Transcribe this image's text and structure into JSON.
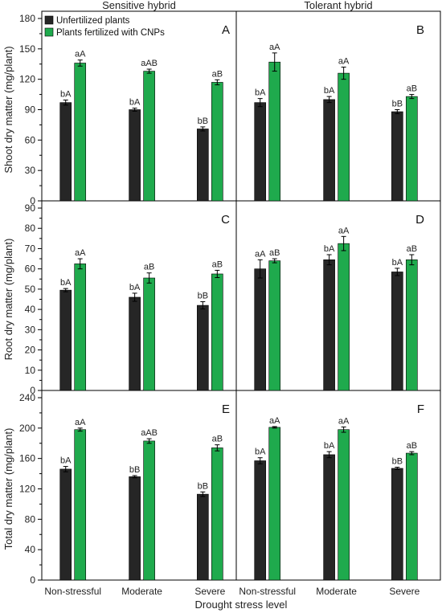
{
  "chart_data": {
    "type": "bar",
    "column_titles": [
      "Sensitive hybrid",
      "Tolerant hybrid"
    ],
    "categories": [
      "Non-stressful",
      "Moderate",
      "Severe"
    ],
    "xlabel": "Drought stress level",
    "legend": {
      "placement": "top-left",
      "entries": [
        "Unfertilized plants",
        "Plants fertilized with CNPs"
      ]
    },
    "colors": {
      "unfertilized": "#262626",
      "fertilized": "#1faa4d"
    },
    "rows": [
      {
        "ylabel": "Shoot dry matter (mg/plant)",
        "ylim": [
          0,
          180
        ],
        "ticks": [
          "0",
          "30",
          "60",
          "90",
          "120",
          "150",
          "180"
        ]
      },
      {
        "ylabel": "Root dry matter (mg/plant)",
        "ylim": [
          0,
          90
        ],
        "ticks": [
          "0",
          "10",
          "20",
          "30",
          "40",
          "50",
          "60",
          "70",
          "80",
          "90"
        ]
      },
      {
        "ylabel": "Total dry matter (mg/plant)",
        "ylim": [
          0,
          240
        ],
        "ticks": [
          "0",
          "40",
          "80",
          "120",
          "160",
          "200",
          "240"
        ]
      }
    ],
    "panels": [
      {
        "letter": "A",
        "row": 0,
        "col": 0,
        "series": [
          {
            "name": "Unfertilized plants",
            "values": [
              97,
              90,
              71
            ],
            "errors": [
              2.5,
              1.5,
              2
            ],
            "labels": [
              "bA",
              "bA",
              "bB"
            ]
          },
          {
            "name": "Plants fertilized with CNPs",
            "values": [
              136,
              128,
              117
            ],
            "errors": [
              3,
              2,
              2.5
            ],
            "labels": [
              "aA",
              "aAB",
              "aB"
            ]
          }
        ]
      },
      {
        "letter": "B",
        "row": 0,
        "col": 1,
        "series": [
          {
            "name": "Unfertilized plants",
            "values": [
              97,
              100,
              88
            ],
            "errors": [
              4,
              3,
              2
            ],
            "labels": [
              "bA",
              "bA",
              "bB"
            ]
          },
          {
            "name": "Plants fertilized with CNPs",
            "values": [
              137,
              126,
              103
            ],
            "errors": [
              9,
              6,
              2
            ],
            "labels": [
              "aA",
              "aA",
              "aB"
            ]
          }
        ]
      },
      {
        "letter": "C",
        "row": 1,
        "col": 0,
        "series": [
          {
            "name": "Unfertilized plants",
            "values": [
              49.5,
              46,
              42
            ],
            "errors": [
              0.8,
              2,
              1.8
            ],
            "labels": [
              "bA",
              "bA",
              "bB"
            ]
          },
          {
            "name": "Plants fertilized with CNPs",
            "values": [
              62.5,
              55.5,
              57.5
            ],
            "errors": [
              2.5,
              2.5,
              1.8
            ],
            "labels": [
              "aA",
              "aB",
              "aB"
            ]
          }
        ]
      },
      {
        "letter": "D",
        "row": 1,
        "col": 1,
        "series": [
          {
            "name": "Unfertilized plants",
            "values": [
              60,
              64.5,
              58.5
            ],
            "errors": [
              4.5,
              2.5,
              1.8
            ],
            "labels": [
              "aA",
              "bA",
              "bA"
            ]
          },
          {
            "name": "Plants fertilized with CNPs",
            "values": [
              64,
              72.5,
              64.5
            ],
            "errors": [
              1,
              3.5,
              2.5
            ],
            "labels": [
              "aB",
              "aA",
              "aB"
            ]
          }
        ]
      },
      {
        "letter": "E",
        "row": 2,
        "col": 0,
        "series": [
          {
            "name": "Unfertilized plants",
            "values": [
              146,
              136,
              113
            ],
            "errors": [
              3.5,
              1.5,
              3
            ],
            "labels": [
              "bA",
              "bB",
              "bB"
            ]
          },
          {
            "name": "Plants fertilized with CNPs",
            "values": [
              198,
              183,
              174
            ],
            "errors": [
              2,
              3,
              4
            ],
            "labels": [
              "aA",
              "aAB",
              "aB"
            ]
          }
        ]
      },
      {
        "letter": "F",
        "row": 2,
        "col": 1,
        "series": [
          {
            "name": "Unfertilized plants",
            "values": [
              157,
              165,
              147
            ],
            "errors": [
              4,
              4,
              1.5
            ],
            "labels": [
              "bA",
              "bA",
              "bB"
            ]
          },
          {
            "name": "Plants fertilized with CNPs",
            "values": [
              201,
              198,
              167
            ],
            "errors": [
              1,
              3.5,
              2
            ],
            "labels": [
              "aA",
              "aA",
              "aB"
            ]
          }
        ]
      }
    ]
  }
}
